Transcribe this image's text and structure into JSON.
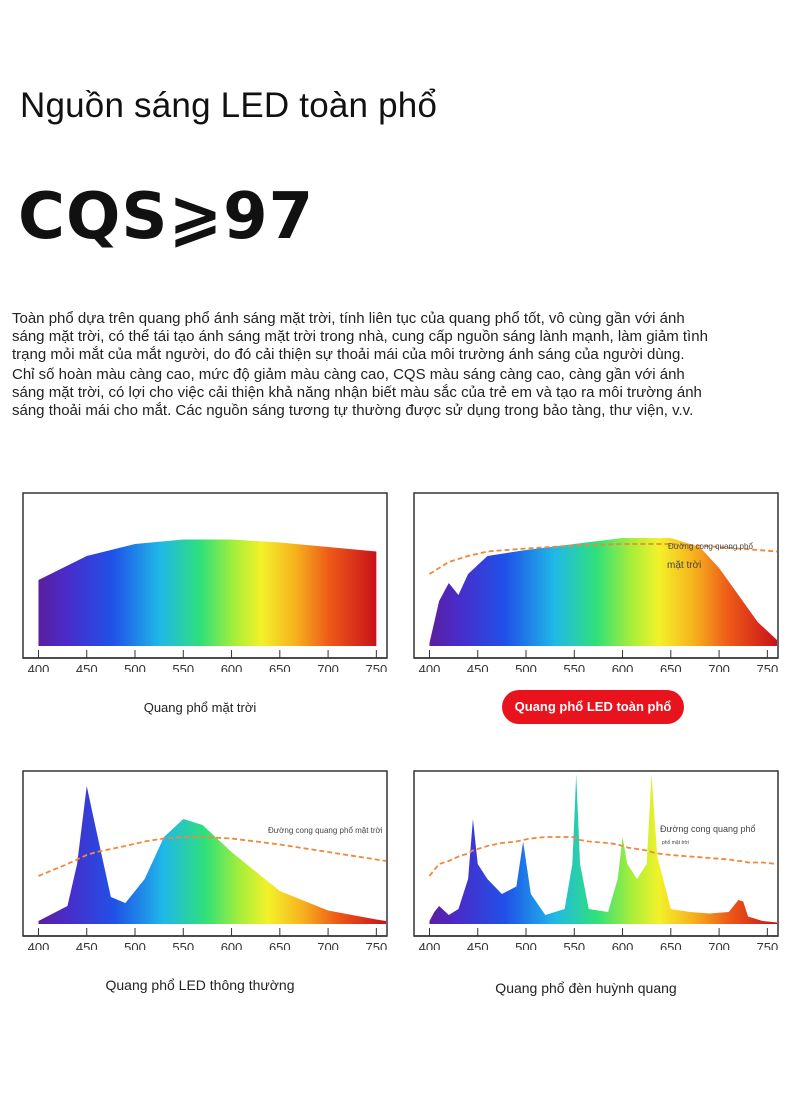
{
  "header": {
    "title": "Nguồn sáng LED toàn phổ",
    "cqs": "CQS⩾97"
  },
  "description": {
    "lines": [
      "Toàn phổ dựa trên quang phổ ánh sáng mặt trời, tính liên tục của quang phổ tốt, vô cùng gần với ánh",
      "sáng mặt trời, có thể tái tạo ánh sáng mặt trời trong nhà, cung cấp nguồn sáng lành mạnh, làm giảm tình",
      "trạng mỏi mắt của mắt người, do đó cải thiện sự thoải mái của môi trường ánh sáng của người dùng.",
      "Chỉ số hoàn màu càng cao, mức độ giảm màu càng cao, CQS màu sáng càng cao, càng gần với ánh",
      "sáng mặt trời, có lợi cho việc cải thiện khả năng nhận biết màu sắc của trẻ em và tạo ra môi trường ánh",
      "sáng thoải mái cho mắt. Các nguồn sáng tương tự thường được sử dụng trong bảo tàng, thư viện, v.v."
    ]
  },
  "chart_data": [
    {
      "type": "area",
      "title": "Quang phổ mặt trời",
      "x": [
        400,
        450,
        500,
        550,
        600,
        650,
        700,
        750
      ],
      "xlim": [
        385,
        760
      ],
      "series": [
        {
          "values": [
            0.44,
            0.6,
            0.68,
            0.71,
            0.71,
            0.69,
            0.66,
            0.63
          ]
        }
      ]
    },
    {
      "type": "area",
      "title": "Quang phổ LED toàn phổ",
      "annotation": "Đường cong quang phổ",
      "annotation2": "mặt trời",
      "x": [
        400,
        410,
        420,
        430,
        440,
        460,
        500,
        550,
        600,
        650,
        680,
        700,
        720,
        740,
        760
      ],
      "xlim": [
        385,
        760
      ],
      "series": [
        {
          "values": [
            0.02,
            0.3,
            0.42,
            0.34,
            0.48,
            0.6,
            0.64,
            0.68,
            0.72,
            0.72,
            0.66,
            0.52,
            0.34,
            0.16,
            0.04
          ]
        },
        {
          "values": [
            0.48,
            0.52,
            0.56,
            0.58,
            0.6,
            0.63,
            0.65,
            0.67,
            0.68,
            0.68,
            0.67,
            0.66,
            0.65,
            0.64,
            0.63
          ]
        }
      ]
    },
    {
      "type": "area",
      "title": "Quang phổ LED thông thường",
      "annotation": "Đường cong quang phổ mặt trời",
      "x": [
        400,
        430,
        440,
        450,
        460,
        475,
        490,
        510,
        530,
        550,
        570,
        600,
        650,
        700,
        750,
        760
      ],
      "xlim": [
        385,
        760
      ],
      "series": [
        {
          "values": [
            0.02,
            0.12,
            0.4,
            0.92,
            0.62,
            0.18,
            0.14,
            0.3,
            0.58,
            0.7,
            0.66,
            0.48,
            0.22,
            0.09,
            0.03,
            0.02
          ]
        },
        {
          "values": [
            0.32,
            0.4,
            0.43,
            0.46,
            0.48,
            0.5,
            0.52,
            0.55,
            0.57,
            0.58,
            0.58,
            0.57,
            0.53,
            0.48,
            0.43,
            0.42
          ]
        }
      ]
    },
    {
      "type": "area",
      "title": "Quang phổ đèn huỳnh quang",
      "annotation": "Đường cong quang phổ",
      "annotation2": "phổ mặt trời",
      "x": [
        400,
        405,
        410,
        420,
        430,
        440,
        445,
        450,
        460,
        475,
        490,
        497,
        505,
        520,
        540,
        548,
        552,
        556,
        565,
        585,
        595,
        600,
        605,
        615,
        625,
        630,
        636,
        650,
        670,
        690,
        710,
        720,
        725,
        730,
        745,
        760
      ],
      "xlim": [
        385,
        760
      ],
      "series": [
        {
          "values": [
            0.02,
            0.08,
            0.12,
            0.06,
            0.1,
            0.3,
            0.7,
            0.4,
            0.3,
            0.2,
            0.25,
            0.55,
            0.2,
            0.06,
            0.1,
            0.4,
            1.0,
            0.4,
            0.1,
            0.08,
            0.3,
            0.58,
            0.4,
            0.3,
            0.4,
            1.0,
            0.45,
            0.1,
            0.08,
            0.07,
            0.08,
            0.16,
            0.15,
            0.05,
            0.02,
            0.01
          ]
        },
        {
          "values": [
            0.32,
            0.36,
            0.4,
            0.42,
            0.45,
            0.47,
            0.49,
            0.5,
            0.52,
            0.54,
            0.55,
            0.56,
            0.57,
            0.58,
            0.58,
            0.58,
            0.57,
            0.56,
            0.55,
            0.54,
            0.53,
            0.52,
            0.51,
            0.5,
            0.49,
            0.48,
            0.47,
            0.46,
            0.45,
            0.44,
            0.43,
            0.42,
            0.42,
            0.41,
            0.41,
            0.4
          ]
        }
      ]
    }
  ],
  "tick_labels": [
    "400",
    "450",
    "500",
    "550",
    "600",
    "650",
    "700",
    "750"
  ],
  "colors": {
    "curve": "#f0883a",
    "pill": "#e8131c",
    "frame": "#333333"
  }
}
